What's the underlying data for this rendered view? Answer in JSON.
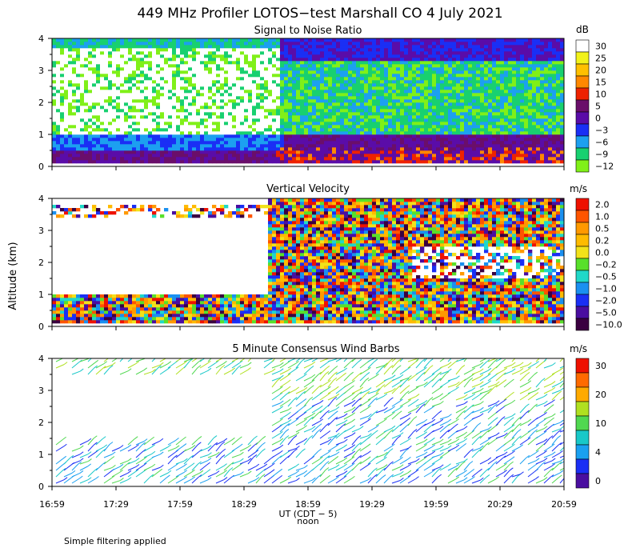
{
  "chart_data": {
    "type": "heatmap",
    "title": "449 MHz Profiler LOTOS−test Marshall CO  4 July 2021",
    "ylabel": "Altitude (km)",
    "xlabel": "UT  (CDT − 5)",
    "xlabel_sub": "noon",
    "footnote": "Simple filtering applied",
    "x_ticks": [
      "16:59",
      "17:29",
      "17:59",
      "18:29",
      "18:59",
      "19:29",
      "19:59",
      "20:29",
      "20:59"
    ],
    "y_ticks": [
      "0",
      "1",
      "2",
      "3",
      "4"
    ],
    "ylim": [
      0,
      4
    ],
    "panels": [
      {
        "title": "Signal to Noise Ratio",
        "unit": "dB",
        "legend": [
          {
            "label": "30",
            "color": "#ffffff"
          },
          {
            "label": "25",
            "color": "#f2f21a"
          },
          {
            "label": "20",
            "color": "#ffc000"
          },
          {
            "label": "15",
            "color": "#ff8800"
          },
          {
            "label": "10",
            "color": "#ee2200"
          },
          {
            "label": "5",
            "color": "#6a0e6a"
          },
          {
            "label": "0",
            "color": "#5a0ca8"
          },
          {
            "label": "−3",
            "color": "#1a2ff5"
          },
          {
            "label": "−6",
            "color": "#1ca0f0"
          },
          {
            "label": "−9",
            "color": "#18d070"
          },
          {
            "label": "−12",
            "color": "#80f018"
          }
        ]
      },
      {
        "title": "Vertical Velocity",
        "unit": "m/s",
        "legend": [
          {
            "label": "2.0",
            "color": "#ee1100"
          },
          {
            "label": "1.0",
            "color": "#ff5500"
          },
          {
            "label": "0.5",
            "color": "#ff9900"
          },
          {
            "label": "0.2",
            "color": "#ffbb00"
          },
          {
            "label": "0.0",
            "color": "#f2e21a"
          },
          {
            "label": "−0.2",
            "color": "#58e02a"
          },
          {
            "label": "−0.5",
            "color": "#20d8c8"
          },
          {
            "label": "−1.0",
            "color": "#1a90f0"
          },
          {
            "label": "−2.0",
            "color": "#1a2ff5"
          },
          {
            "label": "−5.0",
            "color": "#4a0ea0"
          },
          {
            "label": "−10.0",
            "color": "#3a0040"
          }
        ]
      },
      {
        "title": "5 Minute Consensus Wind Barbs",
        "unit": "m/s",
        "legend": [
          {
            "label": "30",
            "color": "#ee1100"
          },
          {
            "label": "",
            "color": "#ff6a00"
          },
          {
            "label": "20",
            "color": "#ffaa00"
          },
          {
            "label": "",
            "color": "#b0e020"
          },
          {
            "label": "10",
            "color": "#50d850"
          },
          {
            "label": "",
            "color": "#18c8c8"
          },
          {
            "label": "4",
            "color": "#1aa0f0"
          },
          {
            "label": "",
            "color": "#1a2ff5"
          },
          {
            "label": "0",
            "color": "#4a0ea0"
          }
        ]
      }
    ]
  }
}
